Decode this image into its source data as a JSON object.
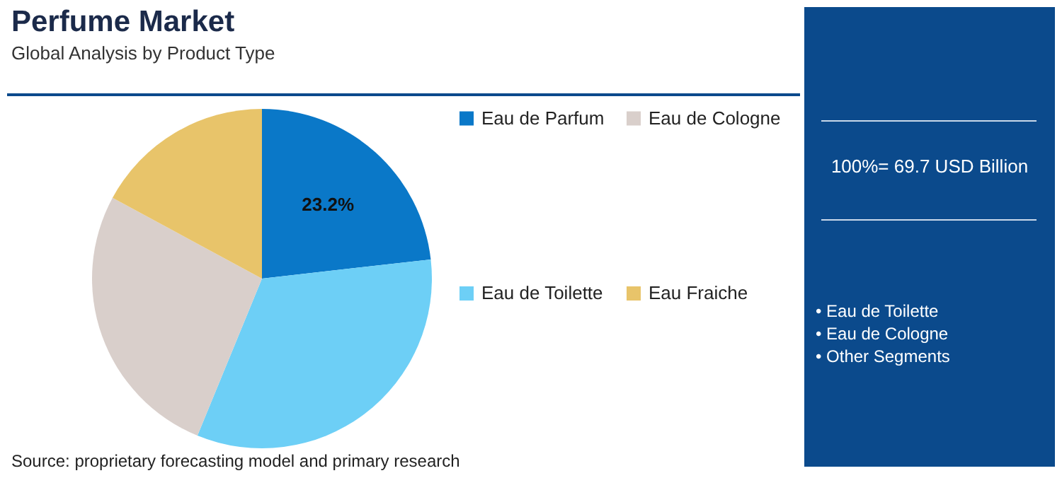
{
  "chart_data": {
    "type": "pie",
    "title": "Perfume Market",
    "subtitle": "Global Analysis by Product Type",
    "categories": [
      "Eau de Parfum",
      "Eau de Toilette",
      "Eau de Cologne",
      "Eau Fraiche"
    ],
    "values": [
      23.2,
      33.0,
      26.7,
      17.1
    ],
    "colors": [
      "#0a78c8",
      "#6dcff6",
      "#d9cfcb",
      "#e8c46a"
    ],
    "value_labels": [
      "23.2%",
      null,
      null,
      null
    ],
    "legend": "right",
    "annotations": [
      "100%= 69.7 USD Billion",
      "• Eau de Toilette",
      "• Eau de Cologne",
      "• Other Segments",
      "Source: proprietary forecasting model and primary research"
    ]
  }
}
